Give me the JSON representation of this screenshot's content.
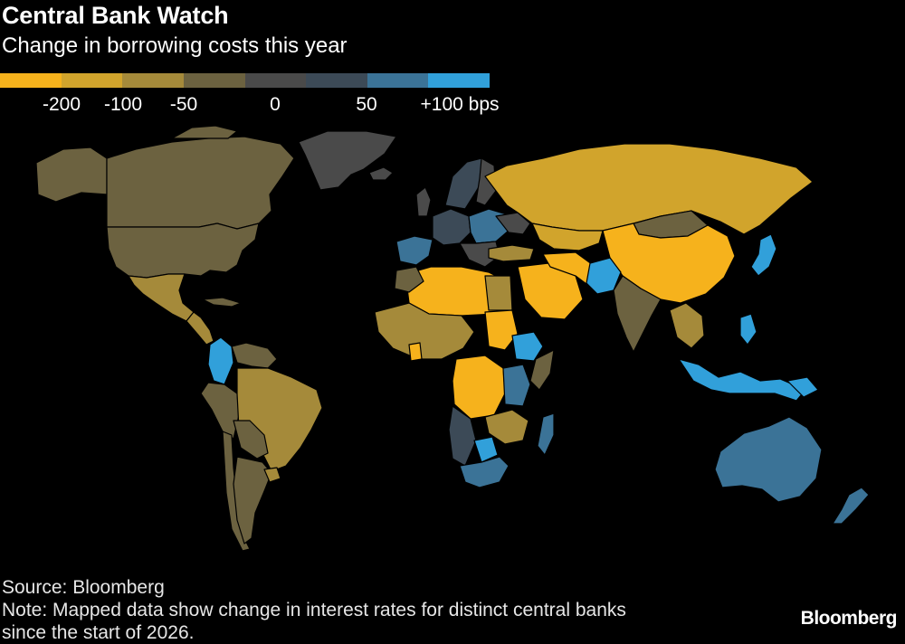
{
  "header": {
    "title": "Central Bank Watch",
    "subtitle": "Change in borrowing costs this year"
  },
  "legend": {
    "colors": [
      "#f6b21c",
      "#d1a42c",
      "#a58a3a",
      "#6c6240",
      "#4a4a4a",
      "#3c4a57",
      "#3b7397",
      "#31a0da"
    ],
    "labels": [
      "-200",
      "-100",
      "-50",
      "0",
      "50",
      "+100 bps"
    ]
  },
  "footer": {
    "source": "Source: Bloomberg",
    "note_line1": "Note: Mapped data show change in interest rates for distinct central banks",
    "note_line2": "since the start of 2026."
  },
  "brand": "Bloomberg",
  "map_colors": {
    "no_data": "#000000",
    "coastline": "#ffffff"
  }
}
